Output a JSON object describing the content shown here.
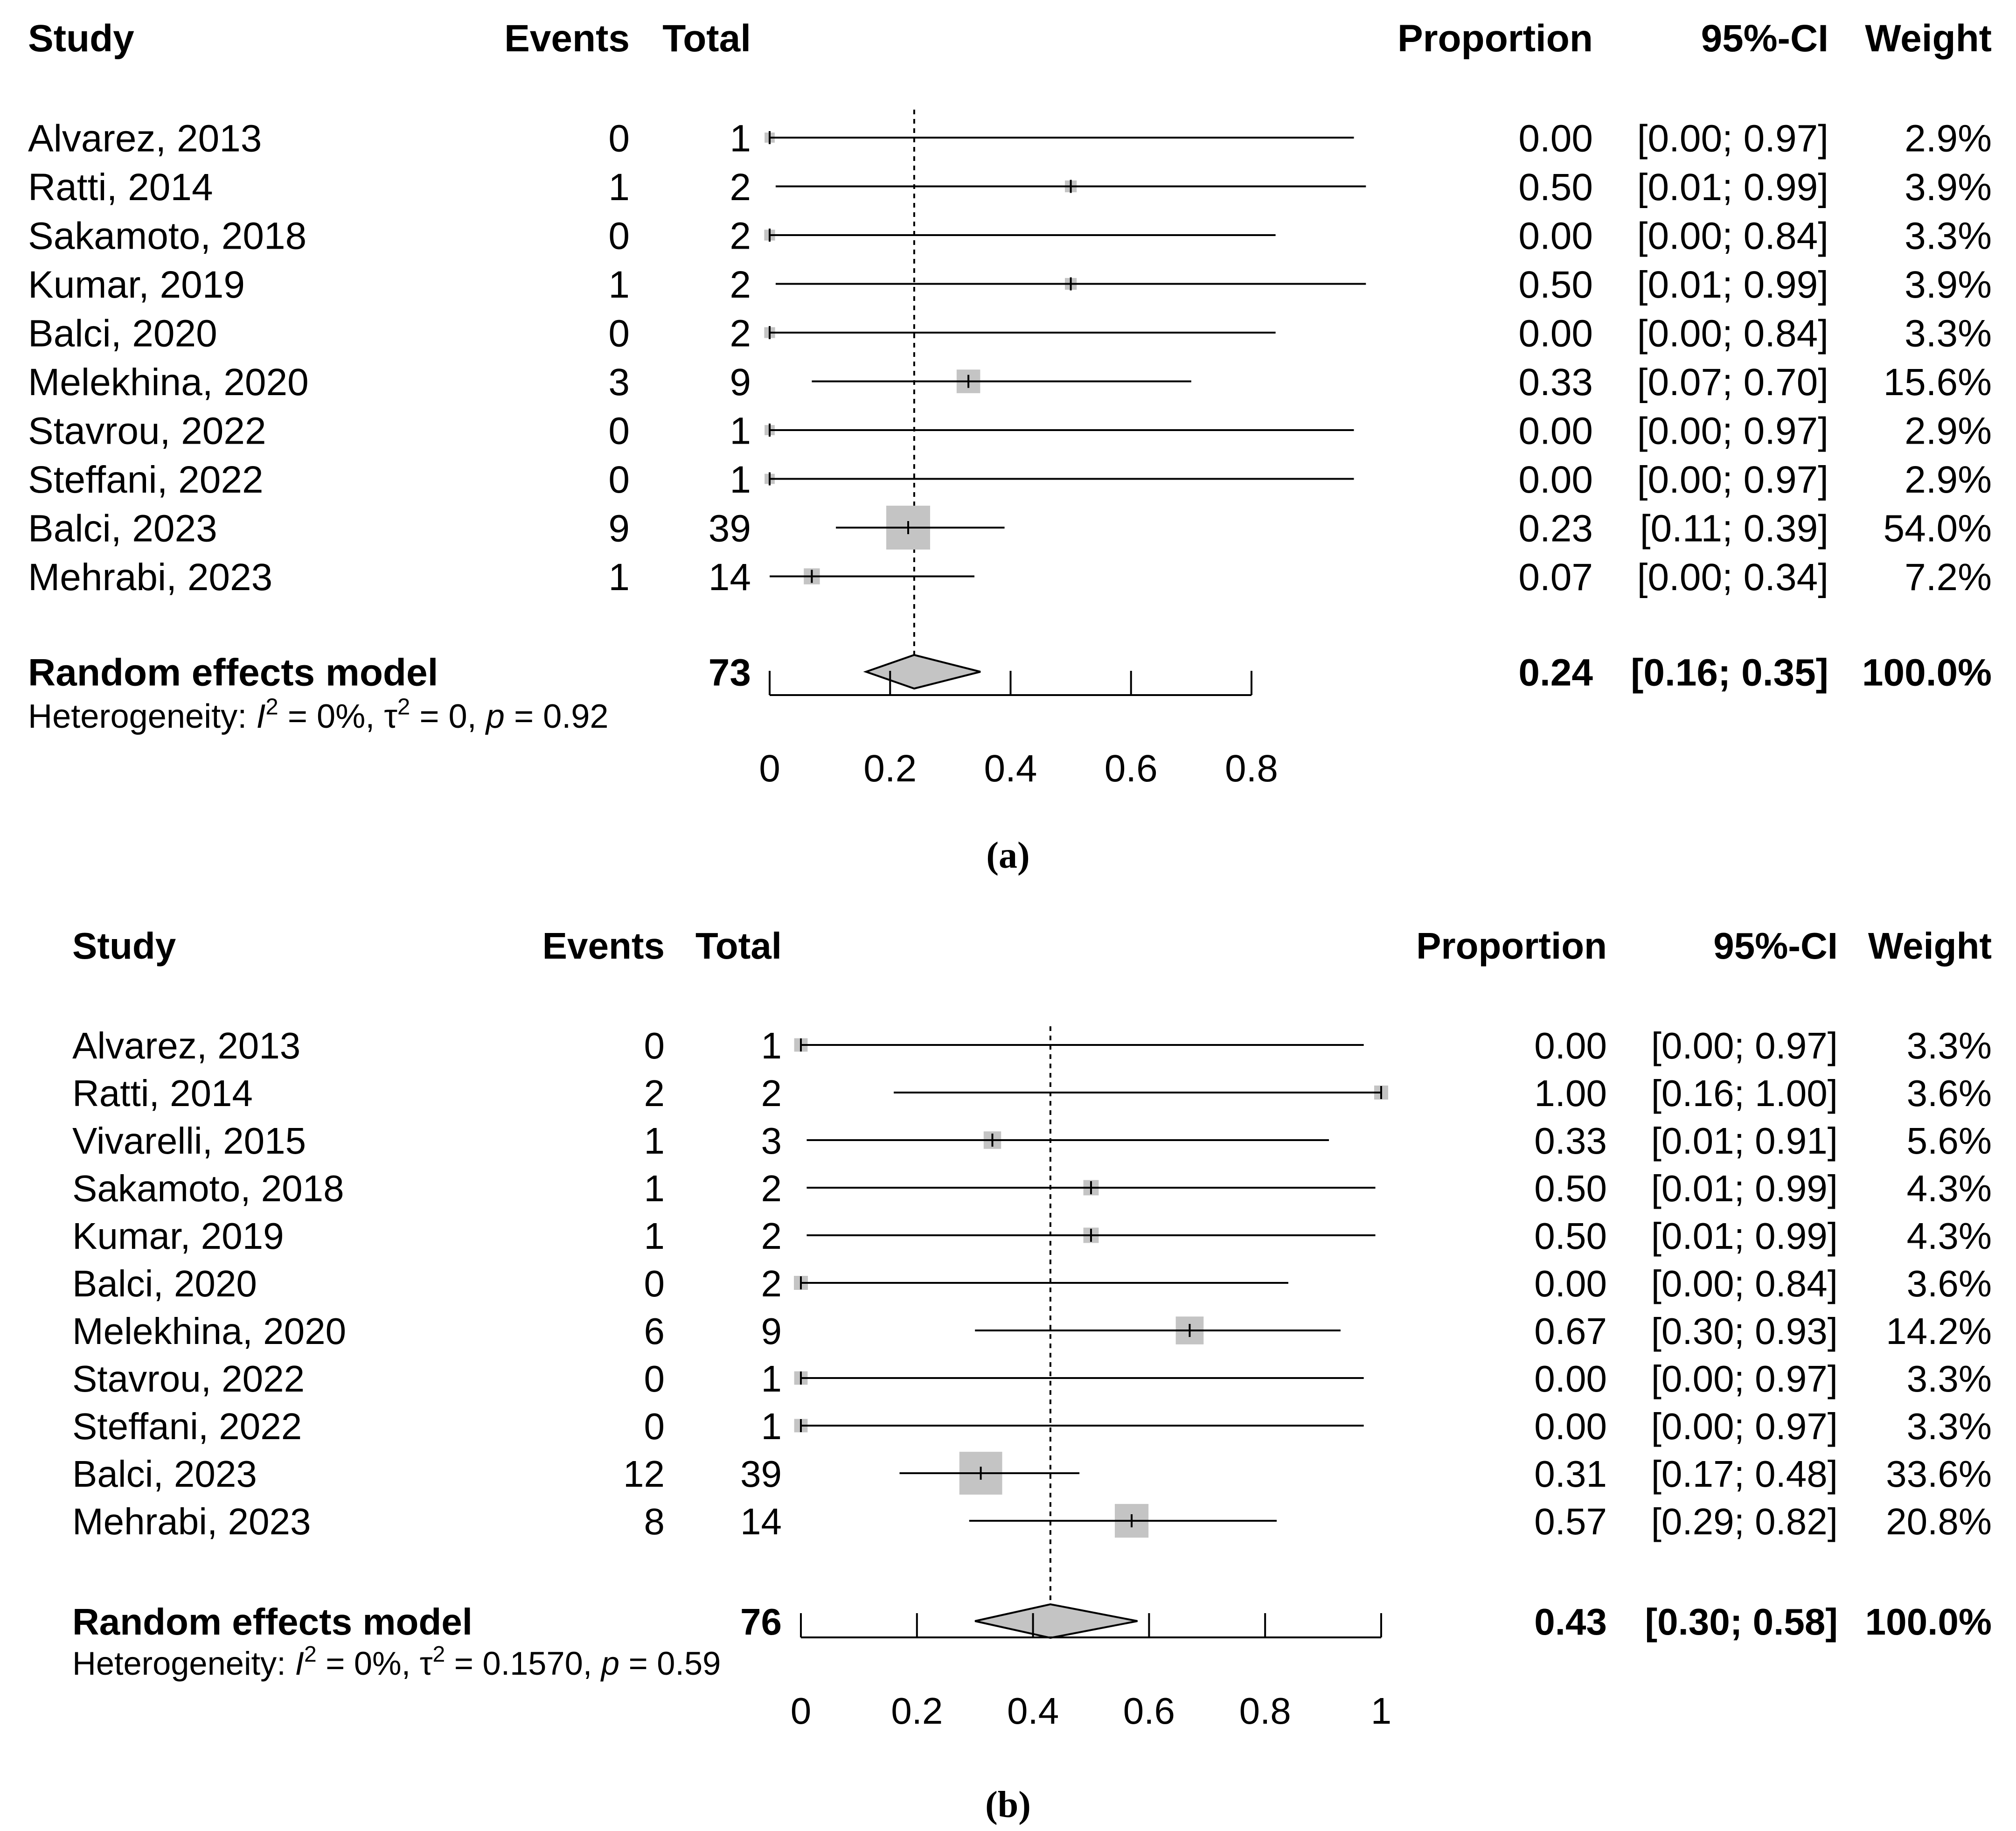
{
  "colors": {
    "box_fill": "#c4c4c4",
    "diamond_fill": "#c4c4c4",
    "line": "#000000",
    "text": "#000000"
  },
  "chart_data": [
    {
      "type": "forest",
      "panel_label": "(a)",
      "columns": {
        "study": "Study",
        "events": "Events",
        "total": "Total",
        "proportion": "Proportion",
        "ci": "95%-CI",
        "weight": "Weight"
      },
      "xlim": [
        0,
        0.8
      ],
      "ticks": [
        0,
        0.2,
        0.4,
        0.6,
        0.8
      ],
      "tick_labels": [
        "0",
        "0.2",
        "0.4",
        "0.6",
        "0.8"
      ],
      "reference_line": 0.24,
      "grid": false,
      "studies": [
        {
          "study": "Alvarez, 2013",
          "events": "0",
          "total": "1",
          "proportion": 0.0,
          "lower": 0.0,
          "upper": 0.97,
          "weight": 2.9,
          "proportion_text": "0.00",
          "ci_text": "[0.00; 0.97]",
          "weight_text": "2.9%"
        },
        {
          "study": "Ratti, 2014",
          "events": "1",
          "total": "2",
          "proportion": 0.5,
          "lower": 0.01,
          "upper": 0.99,
          "weight": 3.9,
          "proportion_text": "0.50",
          "ci_text": "[0.01; 0.99]",
          "weight_text": "3.9%"
        },
        {
          "study": "Sakamoto, 2018",
          "events": "0",
          "total": "2",
          "proportion": 0.0,
          "lower": 0.0,
          "upper": 0.84,
          "weight": 3.3,
          "proportion_text": "0.00",
          "ci_text": "[0.00; 0.84]",
          "weight_text": "3.3%"
        },
        {
          "study": "Kumar, 2019",
          "events": "1",
          "total": "2",
          "proportion": 0.5,
          "lower": 0.01,
          "upper": 0.99,
          "weight": 3.9,
          "proportion_text": "0.50",
          "ci_text": "[0.01; 0.99]",
          "weight_text": "3.9%"
        },
        {
          "study": "Balci, 2020",
          "events": "0",
          "total": "2",
          "proportion": 0.0,
          "lower": 0.0,
          "upper": 0.84,
          "weight": 3.3,
          "proportion_text": "0.00",
          "ci_text": "[0.00; 0.84]",
          "weight_text": "3.3%"
        },
        {
          "study": "Melekhina, 2020",
          "events": "3",
          "total": "9",
          "proportion": 0.33,
          "lower": 0.07,
          "upper": 0.7,
          "weight": 15.6,
          "proportion_text": "0.33",
          "ci_text": "[0.07; 0.70]",
          "weight_text": "15.6%"
        },
        {
          "study": "Stavrou, 2022",
          "events": "0",
          "total": "1",
          "proportion": 0.0,
          "lower": 0.0,
          "upper": 0.97,
          "weight": 2.9,
          "proportion_text": "0.00",
          "ci_text": "[0.00; 0.97]",
          "weight_text": "2.9%"
        },
        {
          "study": "Steffani, 2022",
          "events": "0",
          "total": "1",
          "proportion": 0.0,
          "lower": 0.0,
          "upper": 0.97,
          "weight": 2.9,
          "proportion_text": "0.00",
          "ci_text": "[0.00; 0.97]",
          "weight_text": "2.9%"
        },
        {
          "study": "Balci, 2023",
          "events": "9",
          "total": "39",
          "proportion": 0.23,
          "lower": 0.11,
          "upper": 0.39,
          "weight": 54.0,
          "proportion_text": "0.23",
          "ci_text": "[0.11; 0.39]",
          "weight_text": "54.0%"
        },
        {
          "study": "Mehrabi, 2023",
          "events": "1",
          "total": "14",
          "proportion": 0.07,
          "lower": 0.0,
          "upper": 0.34,
          "weight": 7.2,
          "proportion_text": "0.07",
          "ci_text": "[0.00; 0.34]",
          "weight_text": "7.2%"
        }
      ],
      "summary": {
        "label": "Random effects model",
        "total": "73",
        "proportion": 0.24,
        "lower": 0.16,
        "upper": 0.35,
        "proportion_text": "0.24",
        "ci_text": "[0.16; 0.35]",
        "weight_text": "100.0%"
      },
      "heterogeneity": {
        "prefix": "Heterogeneity: ",
        "i2_symbol": "I",
        "i2_value": " = 0%, ",
        "tau_symbol": "τ",
        "tau_value": " = 0, ",
        "p_symbol": "p",
        "p_value": " = 0.92",
        "sup": "2"
      }
    },
    {
      "type": "forest",
      "panel_label": "(b)",
      "columns": {
        "study": "Study",
        "events": "Events",
        "total": "Total",
        "proportion": "Proportion",
        "ci": "95%-CI",
        "weight": "Weight"
      },
      "xlim": [
        0,
        1
      ],
      "ticks": [
        0,
        0.2,
        0.4,
        0.6,
        0.8,
        1
      ],
      "tick_labels": [
        "0",
        "0.2",
        "0.4",
        "0.6",
        "0.8",
        "1"
      ],
      "reference_line": 0.43,
      "grid": false,
      "studies": [
        {
          "study": "Alvarez, 2013",
          "events": "0",
          "total": "1",
          "proportion": 0.0,
          "lower": 0.0,
          "upper": 0.97,
          "weight": 3.3,
          "proportion_text": "0.00",
          "ci_text": "[0.00; 0.97]",
          "weight_text": "3.3%"
        },
        {
          "study": "Ratti, 2014",
          "events": "2",
          "total": "2",
          "proportion": 1.0,
          "lower": 0.16,
          "upper": 1.0,
          "weight": 3.6,
          "proportion_text": "1.00",
          "ci_text": "[0.16; 1.00]",
          "weight_text": "3.6%"
        },
        {
          "study": "Vivarelli, 2015",
          "events": "1",
          "total": "3",
          "proportion": 0.33,
          "lower": 0.01,
          "upper": 0.91,
          "weight": 5.6,
          "proportion_text": "0.33",
          "ci_text": "[0.01; 0.91]",
          "weight_text": "5.6%"
        },
        {
          "study": "Sakamoto, 2018",
          "events": "1",
          "total": "2",
          "proportion": 0.5,
          "lower": 0.01,
          "upper": 0.99,
          "weight": 4.3,
          "proportion_text": "0.50",
          "ci_text": "[0.01; 0.99]",
          "weight_text": "4.3%"
        },
        {
          "study": "Kumar, 2019",
          "events": "1",
          "total": "2",
          "proportion": 0.5,
          "lower": 0.01,
          "upper": 0.99,
          "weight": 4.3,
          "proportion_text": "0.50",
          "ci_text": "[0.01; 0.99]",
          "weight_text": "4.3%"
        },
        {
          "study": "Balci, 2020",
          "events": "0",
          "total": "2",
          "proportion": 0.0,
          "lower": 0.0,
          "upper": 0.84,
          "weight": 3.6,
          "proportion_text": "0.00",
          "ci_text": "[0.00; 0.84]",
          "weight_text": "3.6%"
        },
        {
          "study": "Melekhina, 2020",
          "events": "6",
          "total": "9",
          "proportion": 0.67,
          "lower": 0.3,
          "upper": 0.93,
          "weight": 14.2,
          "proportion_text": "0.67",
          "ci_text": "[0.30; 0.93]",
          "weight_text": "14.2%"
        },
        {
          "study": "Stavrou, 2022",
          "events": "0",
          "total": "1",
          "proportion": 0.0,
          "lower": 0.0,
          "upper": 0.97,
          "weight": 3.3,
          "proportion_text": "0.00",
          "ci_text": "[0.00; 0.97]",
          "weight_text": "3.3%"
        },
        {
          "study": "Steffani, 2022",
          "events": "0",
          "total": "1",
          "proportion": 0.0,
          "lower": 0.0,
          "upper": 0.97,
          "weight": 3.3,
          "proportion_text": "0.00",
          "ci_text": "[0.00; 0.97]",
          "weight_text": "3.3%"
        },
        {
          "study": "Balci, 2023",
          "events": "12",
          "total": "39",
          "proportion": 0.31,
          "lower": 0.17,
          "upper": 0.48,
          "weight": 33.6,
          "proportion_text": "0.31",
          "ci_text": "[0.17; 0.48]",
          "weight_text": "33.6%"
        },
        {
          "study": "Mehrabi, 2023",
          "events": "8",
          "total": "14",
          "proportion": 0.57,
          "lower": 0.29,
          "upper": 0.82,
          "weight": 20.8,
          "proportion_text": "0.57",
          "ci_text": "[0.29; 0.82]",
          "weight_text": "20.8%"
        }
      ],
      "summary": {
        "label": "Random effects model",
        "total": "76",
        "proportion": 0.43,
        "lower": 0.3,
        "upper": 0.58,
        "proportion_text": "0.43",
        "ci_text": "[0.30; 0.58]",
        "weight_text": "100.0%"
      },
      "heterogeneity": {
        "prefix": "Heterogeneity: ",
        "i2_symbol": "I",
        "i2_value": " = 0%, ",
        "tau_symbol": "τ",
        "tau_value": " = 0.1570, ",
        "p_symbol": "p",
        "p_value": " = 0.59",
        "sup": "2"
      }
    }
  ]
}
